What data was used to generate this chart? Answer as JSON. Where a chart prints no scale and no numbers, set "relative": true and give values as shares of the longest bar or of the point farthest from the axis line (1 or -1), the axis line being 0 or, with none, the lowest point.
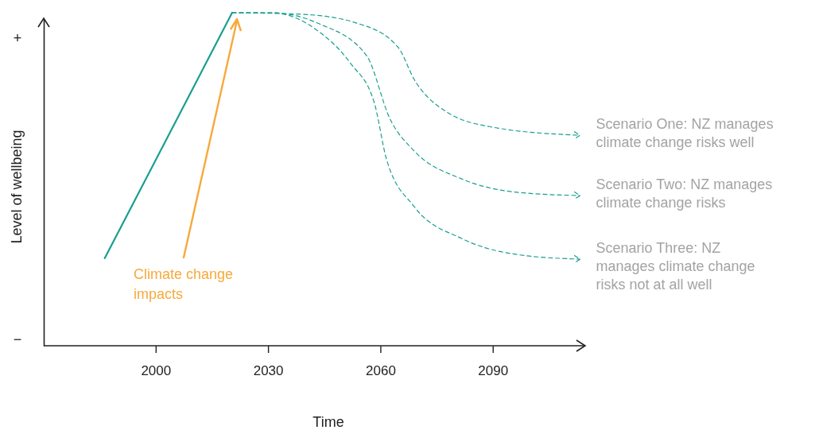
{
  "chart_data": {
    "type": "line",
    "relative": true,
    "xlabel": "Time",
    "ylabel": "Level of wellbeing",
    "xlim": [
      1970,
      2115
    ],
    "xticks": [
      2000,
      2030,
      2060,
      2090
    ],
    "series": [
      {
        "color": "#1a9e8f",
        "line_style": "solid",
        "x": [
          1986.3,
          2020.3
        ],
        "values": [
          0.263,
          1.0
        ]
      },
      {
        "name": "Scenario One: NZ manages climate change risks well",
        "color": "#1a9e8f",
        "line_style": "dashed",
        "x": [
          2020.3,
          2039.3,
          2054.1,
          2064.7,
          2068.9,
          2077.3,
          2090.0,
          2113.2
        ],
        "values": [
          1.0,
          0.995,
          0.967,
          0.895,
          0.8,
          0.704,
          0.656,
          0.632
        ]
      },
      {
        "name": "Scenario Two: NZ manages climate change risks",
        "color": "#1a9e8f",
        "line_style": "dashed",
        "x": [
          2020.3,
          2030.8,
          2043.5,
          2056.2,
          2062.5,
          2068.9,
          2081.6,
          2096.3,
          2113.2
        ],
        "values": [
          1.0,
          1.0,
          0.967,
          0.871,
          0.68,
          0.585,
          0.501,
          0.461,
          0.451
        ]
      },
      {
        "name": "Scenario Three: NZ manages climate change risks not at all well",
        "color": "#1a9e8f",
        "line_style": "dashed",
        "x": [
          2020.3,
          2030.8,
          2043.5,
          2052.0,
          2058.3,
          2061.5,
          2068.9,
          2081.6,
          2096.3,
          2113.2
        ],
        "values": [
          1.0,
          1.0,
          0.943,
          0.847,
          0.728,
          0.561,
          0.418,
          0.322,
          0.274,
          0.26
        ]
      }
    ],
    "annotations": [
      "Climate change impacts",
      "+",
      "−"
    ],
    "legend": "right"
  }
}
